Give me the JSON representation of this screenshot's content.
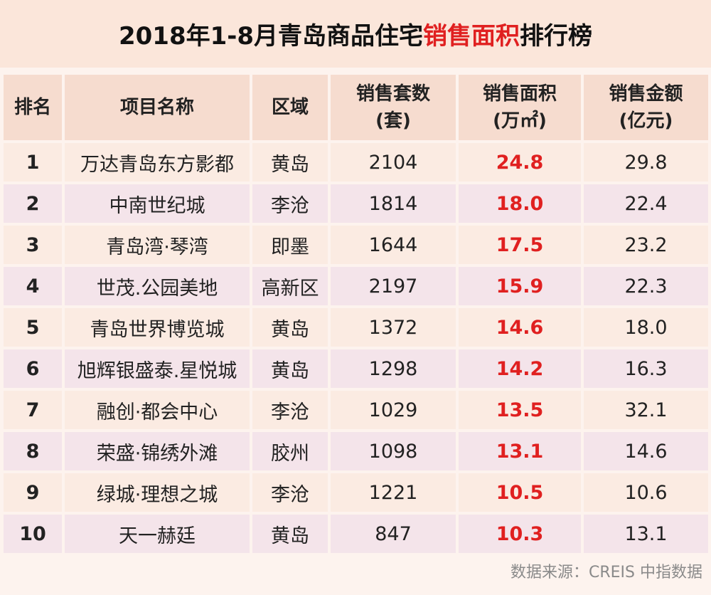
{
  "title": {
    "prefix": "2018年1-8月青岛商品住宅",
    "highlight": "销售面积",
    "suffix": "排行榜"
  },
  "table": {
    "header": [
      [
        "排名"
      ],
      [
        "项目名称"
      ],
      [
        "区域"
      ],
      [
        "销售套数",
        "(套)"
      ],
      [
        "销售面积",
        "(万㎡)"
      ],
      [
        "销售金额",
        "(亿元)"
      ]
    ],
    "rows": [
      [
        "1",
        "万达青岛东方影都",
        "黄岛",
        "2104",
        "24.8",
        "29.8"
      ],
      [
        "2",
        "中南世纪城",
        "李沧",
        "1814",
        "18.0",
        "22.4"
      ],
      [
        "3",
        "青岛湾·琴湾",
        "即墨",
        "1644",
        "17.5",
        "23.2"
      ],
      [
        "4",
        "世茂.公园美地",
        "高新区",
        "2197",
        "15.9",
        "22.3"
      ],
      [
        "5",
        "青岛世界博览城",
        "黄岛",
        "1372",
        "14.6",
        "18.0"
      ],
      [
        "6",
        "旭辉银盛泰.星悦城",
        "黄岛",
        "1298",
        "14.2",
        "16.3"
      ],
      [
        "7",
        "融创·都会中心",
        "李沧",
        "1029",
        "13.5",
        "32.1"
      ],
      [
        "8",
        "荣盛·锦绣外滩",
        "胶州",
        "1098",
        "13.1",
        "14.6"
      ],
      [
        "9",
        "绿城·理想之城",
        "李沧",
        "1221",
        "10.5",
        "10.6"
      ],
      [
        "10",
        "天一赫廷",
        "黄岛",
        "847",
        "10.3",
        "13.1"
      ]
    ]
  },
  "source": "数据来源：CREIS 中指数据"
}
